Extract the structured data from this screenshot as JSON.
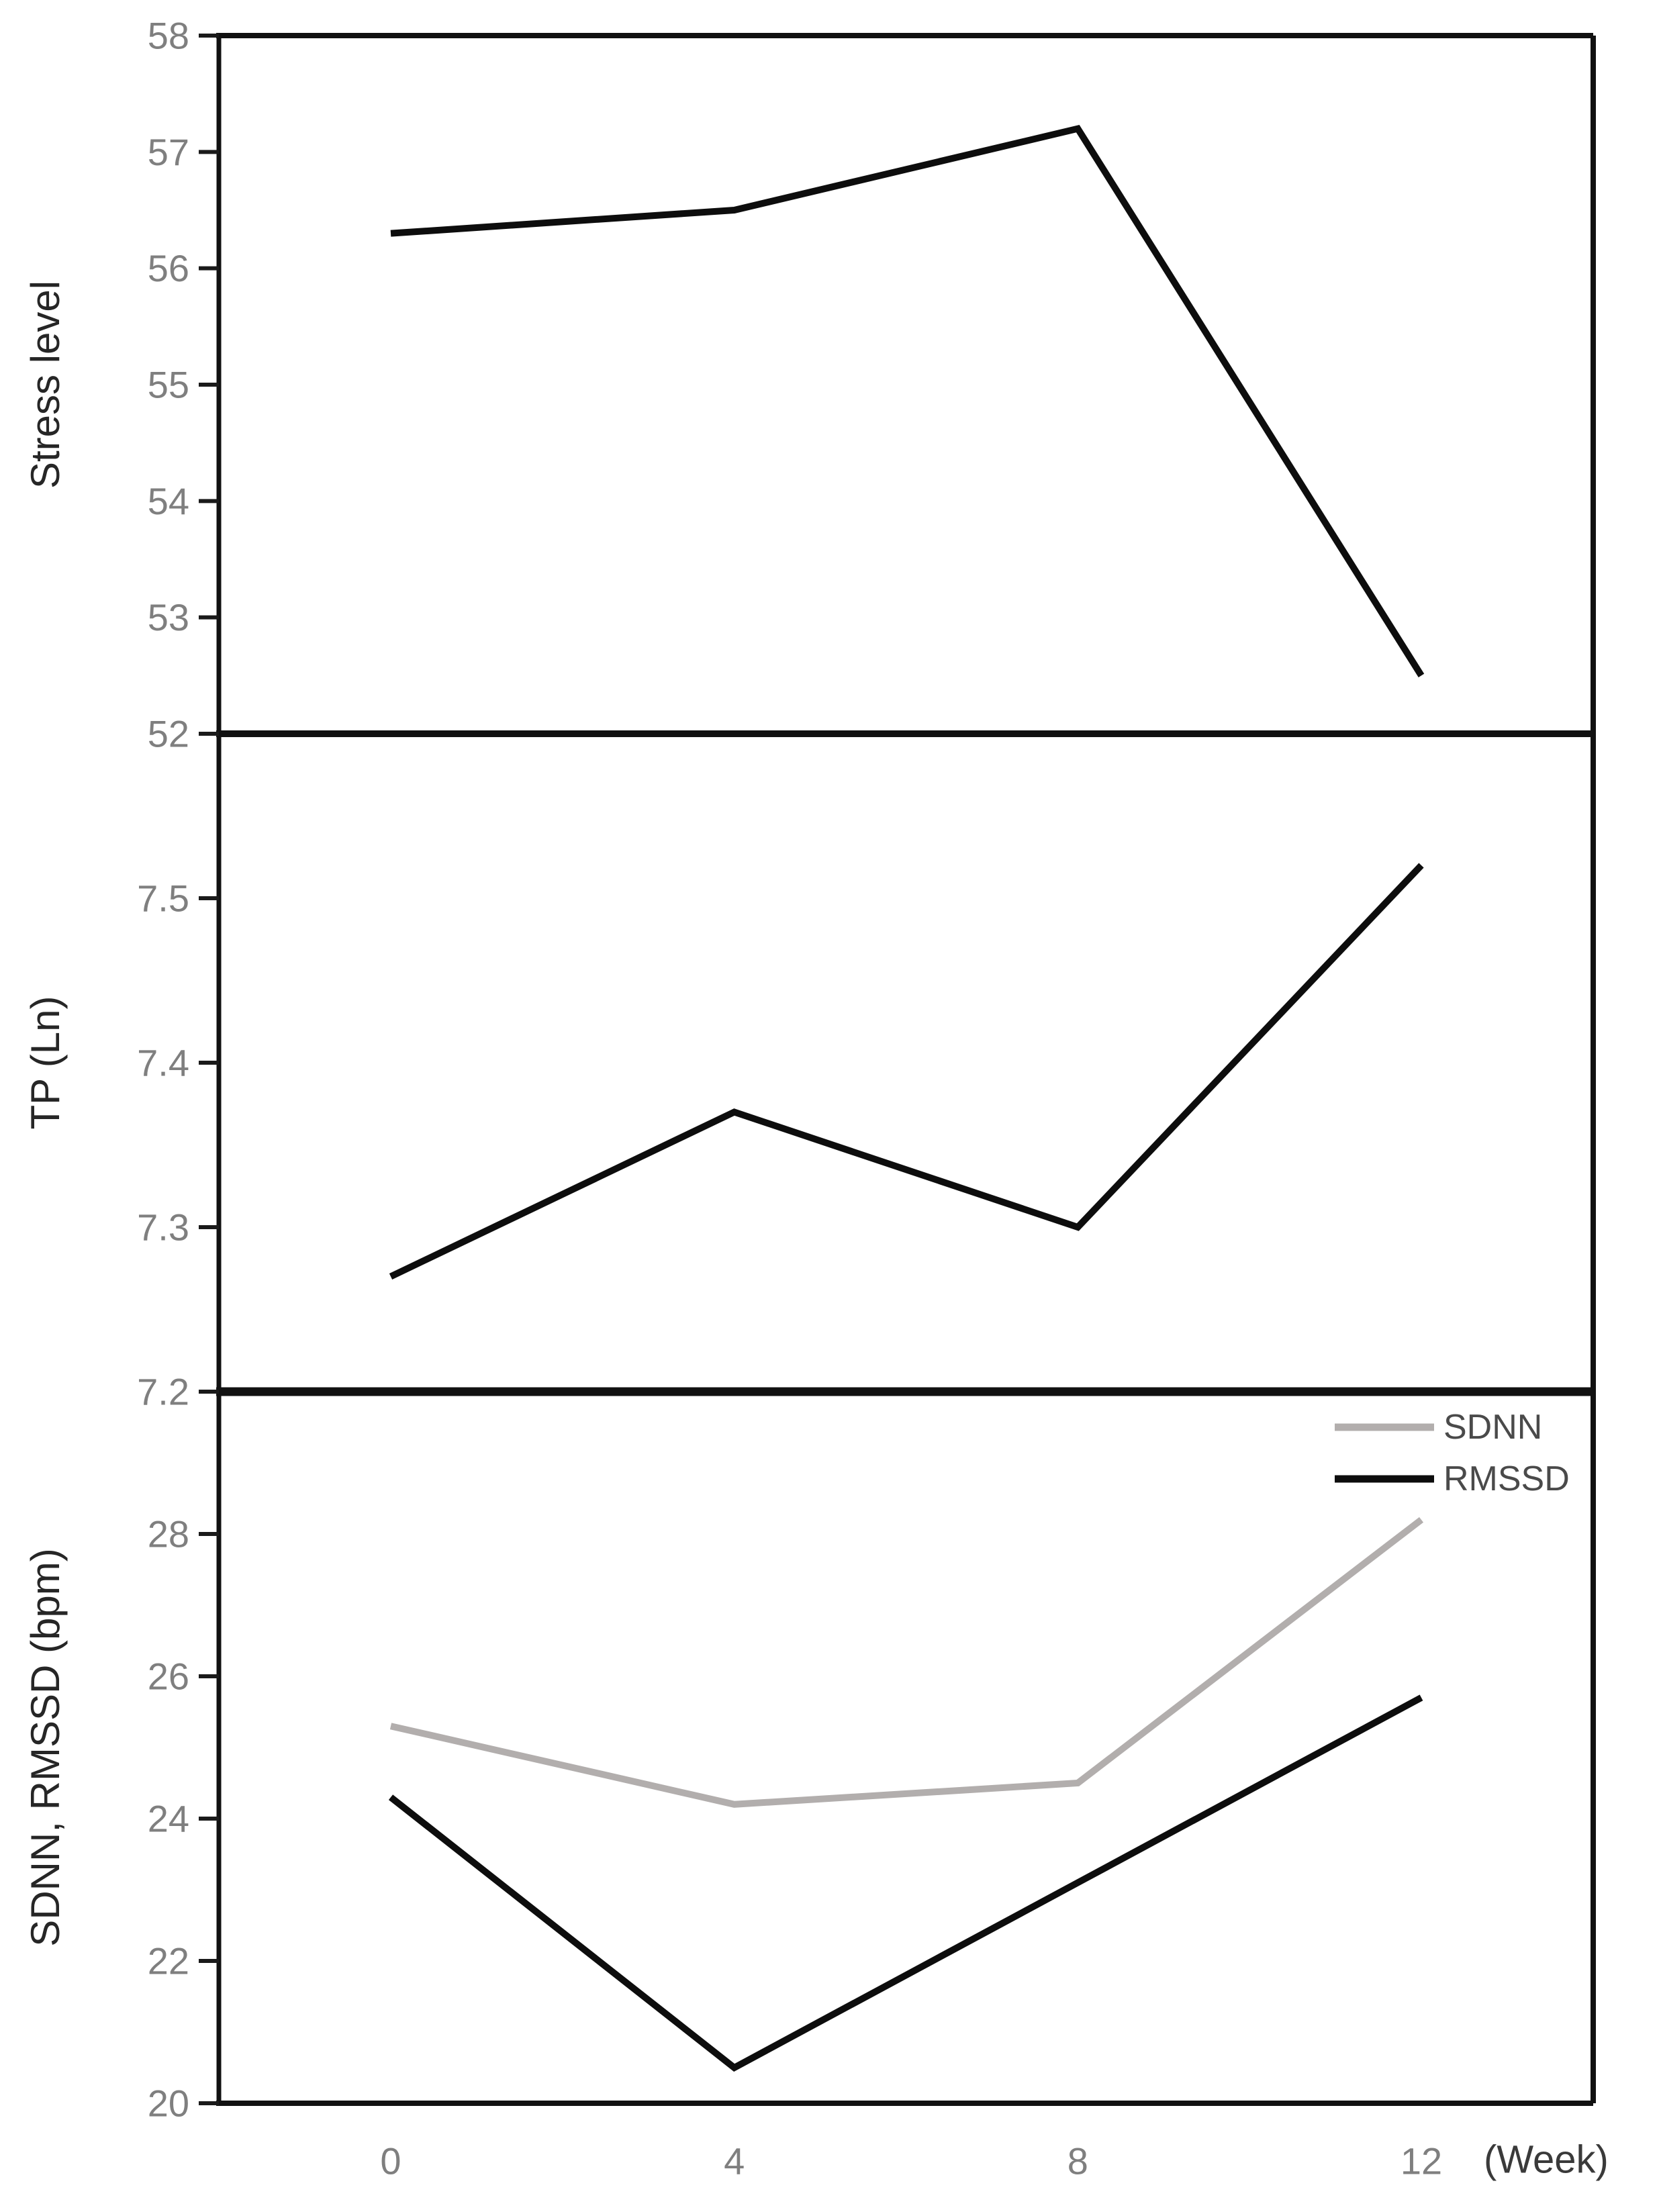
{
  "figure_title": "",
  "x_axis": {
    "unit_label": "(Week)",
    "tick_values": [
      0,
      4,
      8,
      12
    ]
  },
  "legend": {
    "entries": [
      {
        "label": "SDNN",
        "color": "#b2aead"
      },
      {
        "label": "RMSSD",
        "color": "#0d0d0d"
      }
    ],
    "position": "top-right-of-bottom-panel"
  },
  "colors": {
    "line_black": "#0d0d0d",
    "line_gray": "#b2aead",
    "tick_label_gray": "#7f7f7f",
    "axis_dark": "#111111"
  },
  "chart_data": [
    {
      "id": "stress",
      "type": "line",
      "title": "",
      "x": [
        0,
        4,
        8,
        12
      ],
      "xlabel": "(Week)",
      "ylabel": "Stress level",
      "ylim": [
        52,
        58
      ],
      "yticks": [
        58,
        57,
        56,
        55,
        54,
        53,
        52
      ],
      "grid": false,
      "legend_position": "none",
      "series": [
        {
          "name": "Stress level",
          "color": "#0d0d0d",
          "values": [
            56.3,
            56.5,
            57.2,
            52.5
          ]
        }
      ]
    },
    {
      "id": "tp",
      "type": "line",
      "title": "",
      "x": [
        0,
        4,
        8,
        12
      ],
      "xlabel": "(Week)",
      "ylabel": "TP (Ln)",
      "ylim": [
        7.2,
        7.6
      ],
      "yticks": [
        7.5,
        7.4,
        7.3,
        7.2
      ],
      "grid": false,
      "legend_position": "none",
      "series": [
        {
          "name": "TP (Ln)",
          "color": "#0d0d0d",
          "values": [
            7.27,
            7.37,
            7.3,
            7.52
          ]
        }
      ]
    },
    {
      "id": "hrv",
      "type": "line",
      "title": "",
      "x": [
        0,
        4,
        8,
        12
      ],
      "xlabel": "(Week)",
      "ylabel": "SDNN, RMSSD (bpm)",
      "ylim": [
        20,
        30
      ],
      "yticks": [
        28,
        26,
        24,
        22,
        20
      ],
      "grid": false,
      "legend_position": "top-right",
      "series": [
        {
          "name": "SDNN",
          "color": "#b2aead",
          "values": [
            25.3,
            24.2,
            24.5,
            28.2
          ]
        },
        {
          "name": "RMSSD",
          "color": "#0d0d0d",
          "values": [
            24.3,
            20.5,
            23.1,
            25.7
          ]
        }
      ]
    }
  ]
}
